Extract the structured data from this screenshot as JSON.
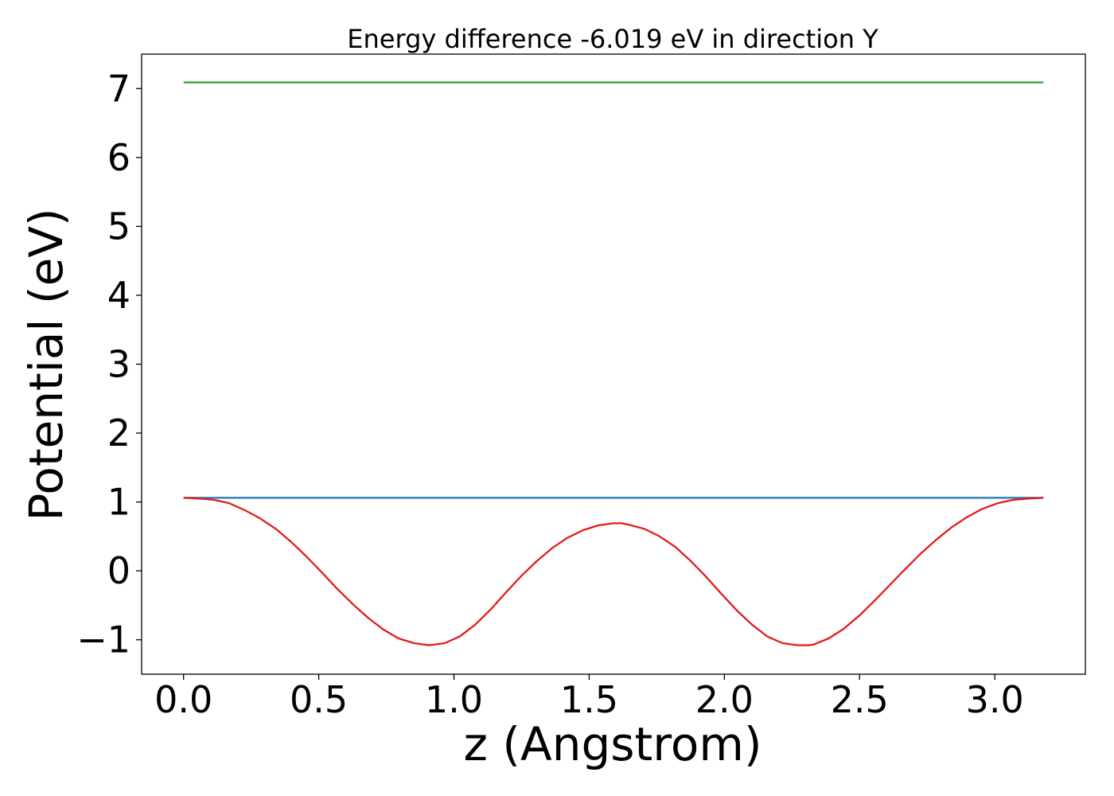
{
  "chart_data": {
    "type": "line",
    "title": "Energy difference -6.019 eV in direction Y",
    "xlabel": "z (Angstrom)",
    "ylabel": "Potential (eV)",
    "xlim": [
      -0.155,
      3.335
    ],
    "ylim": [
      -1.5,
      7.5
    ],
    "xticks": [
      0.0,
      0.5,
      1.0,
      1.5,
      2.0,
      2.5,
      3.0
    ],
    "xtick_labels": [
      "0.0",
      "0.5",
      "1.0",
      "1.5",
      "2.0",
      "2.5",
      "3.0"
    ],
    "yticks": [
      -1,
      0,
      1,
      2,
      3,
      4,
      5,
      6,
      7
    ],
    "ytick_labels": [
      "−1",
      "0",
      "1",
      "2",
      "3",
      "4",
      "5",
      "6",
      "7"
    ],
    "grid": false,
    "legend": "none",
    "series": [
      {
        "color": "#2ca02c",
        "x": [
          0.0,
          3.18
        ],
        "y": [
          7.09,
          7.09
        ]
      },
      {
        "color": "#1f77b4",
        "x": [
          0.0,
          3.18
        ],
        "y": [
          1.06,
          1.06
        ]
      },
      {
        "color": "#e41a1c",
        "x": [
          0.0,
          0.057,
          0.114,
          0.17,
          0.227,
          0.284,
          0.341,
          0.398,
          0.454,
          0.511,
          0.568,
          0.625,
          0.682,
          0.738,
          0.795,
          0.852,
          0.909,
          0.966,
          1.022,
          1.079,
          1.136,
          1.193,
          1.25,
          1.306,
          1.363,
          1.42,
          1.477,
          1.534,
          1.59,
          1.62,
          1.647,
          1.704,
          1.761,
          1.818,
          1.874,
          1.931,
          1.988,
          2.045,
          2.102,
          2.158,
          2.215,
          2.272,
          2.31,
          2.329,
          2.386,
          2.442,
          2.499,
          2.556,
          2.613,
          2.67,
          2.726,
          2.783,
          2.84,
          2.897,
          2.954,
          3.01,
          3.067,
          3.124,
          3.18
        ],
        "y": [
          1.06,
          1.05,
          1.03,
          0.98,
          0.88,
          0.76,
          0.61,
          0.42,
          0.21,
          -0.02,
          -0.26,
          -0.48,
          -0.68,
          -0.85,
          -0.98,
          -1.05,
          -1.08,
          -1.05,
          -0.95,
          -0.78,
          -0.56,
          -0.31,
          -0.07,
          0.14,
          0.33,
          0.48,
          0.59,
          0.66,
          0.69,
          0.69,
          0.67,
          0.61,
          0.5,
          0.35,
          0.15,
          -0.08,
          -0.33,
          -0.57,
          -0.78,
          -0.95,
          -1.05,
          -1.08,
          -1.08,
          -1.07,
          -0.98,
          -0.84,
          -0.65,
          -0.43,
          -0.2,
          0.03,
          0.25,
          0.45,
          0.63,
          0.78,
          0.9,
          0.98,
          1.03,
          1.05,
          1.06
        ]
      }
    ]
  }
}
